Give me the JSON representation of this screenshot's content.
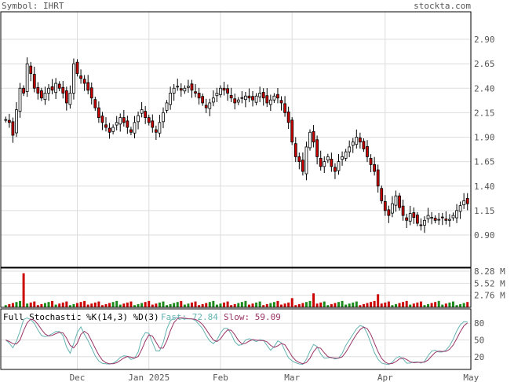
{
  "header": {
    "symbol_label": "Symbol: IHRT",
    "brand": "stockta.com"
  },
  "stochastic": {
    "title": "Full Stochastic %K(14,3) %D(3)",
    "fast_label": "Fast: 72.84",
    "slow_label": "Slow: 59.09",
    "fast_color": "#66b2b2",
    "slow_color": "#993366",
    "ticks": [
      "80",
      "50",
      "20"
    ]
  },
  "colors": {
    "up_fill": "#ffffff",
    "down_fill": "#cc0000",
    "vol_up": "#1a8a1a",
    "vol_down": "#cc0000",
    "grid": "#dddddd",
    "frame": "#000000"
  },
  "chart_data": [
    {
      "type": "candlestick",
      "price_ticks": [
        2.9,
        2.65,
        2.4,
        2.15,
        1.9,
        1.65,
        1.4,
        1.15,
        0.9
      ],
      "price_tick_labels": [
        "2.90",
        "2.65",
        "2.40",
        "2.15",
        "1.90",
        "1.65",
        "1.40",
        "1.15",
        "0.90"
      ],
      "x_labels": [
        {
          "label": "Dec",
          "index": 20
        },
        {
          "label": "Jan 2025",
          "index": 40
        },
        {
          "label": "Feb",
          "index": 60
        },
        {
          "label": "Mar",
          "index": 80
        },
        {
          "label": "Apr",
          "index": 106
        },
        {
          "label": "May",
          "index": 130
        }
      ],
      "closes": [
        2.08,
        2.05,
        1.92,
        2.18,
        2.4,
        2.35,
        2.65,
        2.55,
        2.4,
        2.35,
        2.3,
        2.35,
        2.4,
        2.38,
        2.45,
        2.4,
        2.35,
        2.25,
        2.35,
        2.65,
        2.55,
        2.5,
        2.45,
        2.38,
        2.3,
        2.2,
        2.1,
        2.05,
        2.0,
        1.95,
        2.0,
        2.05,
        2.1,
        2.05,
        2.0,
        1.95,
        2.05,
        2.12,
        2.18,
        2.1,
        2.05,
        2.0,
        1.95,
        2.05,
        2.15,
        2.25,
        2.35,
        2.4,
        2.42,
        2.38,
        2.4,
        2.42,
        2.38,
        2.35,
        2.3,
        2.25,
        2.2,
        2.25,
        2.3,
        2.35,
        2.4,
        2.38,
        2.35,
        2.3,
        2.25,
        2.28,
        2.3,
        2.32,
        2.3,
        2.28,
        2.32,
        2.35,
        2.3,
        2.25,
        2.28,
        2.32,
        2.3,
        2.25,
        2.15,
        2.05,
        1.85,
        1.7,
        1.65,
        1.55,
        1.8,
        1.95,
        1.85,
        1.7,
        1.6,
        1.65,
        1.7,
        1.6,
        1.55,
        1.65,
        1.7,
        1.75,
        1.8,
        1.85,
        1.9,
        1.85,
        1.78,
        1.7,
        1.62,
        1.55,
        1.4,
        1.25,
        1.15,
        1.1,
        1.22,
        1.3,
        1.18,
        1.1,
        1.05,
        1.12,
        1.08,
        1.02,
        1.0,
        1.05,
        1.1,
        1.08,
        1.05,
        1.06,
        1.08,
        1.05,
        1.06,
        1.1,
        1.15,
        1.2,
        1.25,
        1.22
      ],
      "volume_ticks": [
        "8.28 M",
        "5.52 M",
        "2.76 M"
      ],
      "volume_max": 8.28
    },
    {
      "type": "line",
      "title": "Full Stochastic %K(14,3) %D(3)",
      "ylim": [
        0,
        100
      ],
      "fast_last": 72.84,
      "slow_last": 59.09
    }
  ]
}
